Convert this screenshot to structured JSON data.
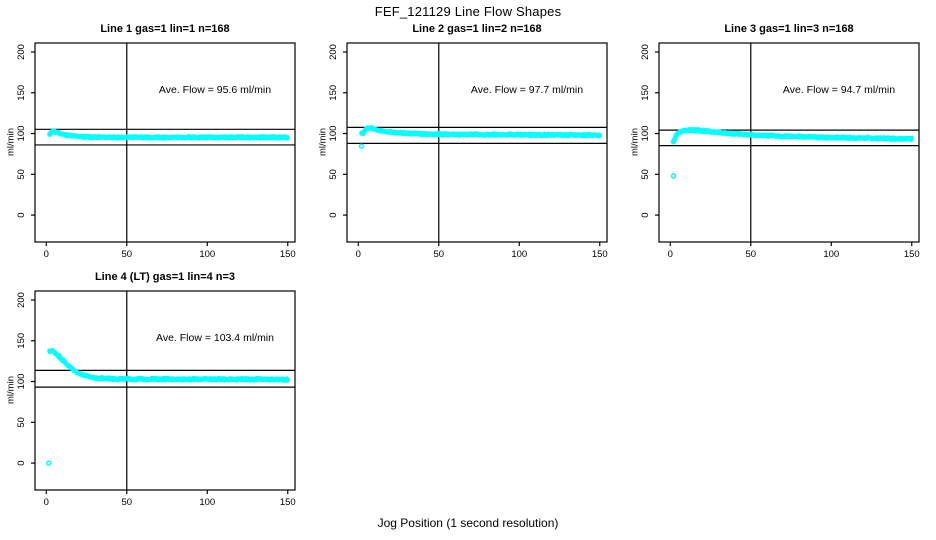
{
  "page_title": "FEF_121129  Line Flow Shapes",
  "x_axis_label": "Jog Position (1 second resolution)",
  "y_axis_label": "ml/min",
  "colors": {
    "points": "#00ffff",
    "lines": "#000000",
    "background": "#ffffff"
  },
  "chart_data": [
    {
      "type": "scatter",
      "title": "Line 1 gas=1 lin=1 n=168",
      "gas": 1,
      "lin": 1,
      "n": 168,
      "ave_flow": 95.6,
      "annotation": "Ave. Flow =  95.6  ml/min",
      "xlabel": "Jog Position (1 second resolution)",
      "ylabel": "ml/min",
      "xlim": [
        -7,
        154.5
      ],
      "ylim": [
        -33,
        211
      ],
      "x_ticks": [
        0,
        50,
        100,
        150
      ],
      "y_ticks": [
        0,
        50,
        100,
        150,
        200
      ],
      "vline_x": 50,
      "hlines": {
        "upper": 105.2,
        "lower": 86.0
      },
      "band_halfwidth": 1.6,
      "band": [
        [
          2,
          99.5
        ],
        [
          3,
          101.5
        ],
        [
          4,
          102.5
        ],
        [
          6,
          102.0
        ],
        [
          8,
          100.5
        ],
        [
          10,
          99.0
        ],
        [
          13,
          97.5
        ],
        [
          16,
          96.8
        ],
        [
          20,
          96.2
        ],
        [
          25,
          95.8
        ],
        [
          35,
          95.5
        ],
        [
          50,
          95.4
        ],
        [
          80,
          95.3
        ],
        [
          110,
          95.4
        ],
        [
          150,
          95.2
        ]
      ],
      "outliers": []
    },
    {
      "type": "scatter",
      "title": "Line 2 gas=1 lin=2 n=168",
      "gas": 1,
      "lin": 2,
      "n": 168,
      "ave_flow": 97.7,
      "annotation": "Ave. Flow =  97.7  ml/min",
      "xlabel": "Jog Position (1 second resolution)",
      "ylabel": "ml/min",
      "xlim": [
        -7,
        154.5
      ],
      "ylim": [
        -33,
        211
      ],
      "x_ticks": [
        0,
        50,
        100,
        150
      ],
      "y_ticks": [
        0,
        50,
        100,
        150,
        200
      ],
      "vline_x": 50,
      "hlines": {
        "upper": 107.5,
        "lower": 87.9
      },
      "band_halfwidth": 1.6,
      "band": [
        [
          2,
          99.8
        ],
        [
          3,
          101.0
        ],
        [
          4,
          103.5
        ],
        [
          5,
          105.5
        ],
        [
          6,
          106.8
        ],
        [
          8,
          106.5
        ],
        [
          10,
          105.3
        ],
        [
          13,
          103.8
        ],
        [
          16,
          102.8
        ],
        [
          20,
          101.8
        ],
        [
          25,
          100.8
        ],
        [
          30,
          100.2
        ],
        [
          40,
          99.4
        ],
        [
          55,
          98.9
        ],
        [
          80,
          98.6
        ],
        [
          110,
          98.3
        ],
        [
          150,
          97.9
        ]
      ],
      "outliers": [
        [
          2,
          84.5
        ]
      ]
    },
    {
      "type": "scatter",
      "title": "Line 3 gas=1 lin=3 n=168",
      "gas": 1,
      "lin": 3,
      "n": 168,
      "ave_flow": 94.7,
      "annotation": "Ave. Flow =  94.7  ml/min",
      "xlabel": "Jog Position (1 second resolution)",
      "ylabel": "ml/min",
      "xlim": [
        -7,
        154.5
      ],
      "ylim": [
        -33,
        211
      ],
      "x_ticks": [
        0,
        50,
        100,
        150
      ],
      "y_ticks": [
        0,
        50,
        100,
        150,
        200
      ],
      "vline_x": 50,
      "hlines": {
        "upper": 104.2,
        "lower": 85.2
      },
      "band_halfwidth": 1.7,
      "band": [
        [
          2,
          90.5
        ],
        [
          3,
          95.0
        ],
        [
          4,
          99.0
        ],
        [
          6,
          102.0
        ],
        [
          8,
          103.2
        ],
        [
          11,
          103.8
        ],
        [
          15,
          104.0
        ],
        [
          20,
          103.2
        ],
        [
          26,
          102.0
        ],
        [
          33,
          100.8
        ],
        [
          42,
          99.3
        ],
        [
          55,
          97.8
        ],
        [
          70,
          96.6
        ],
        [
          90,
          95.5
        ],
        [
          110,
          94.7
        ],
        [
          130,
          94.1
        ],
        [
          150,
          93.6
        ]
      ],
      "outliers": [
        [
          2,
          48.0
        ],
        [
          2,
          90.0
        ]
      ]
    },
    {
      "type": "scatter",
      "title": "Line 4 (LT) gas=1 lin=4 n=3",
      "gas": 1,
      "lin": 4,
      "n": 3,
      "ave_flow": 103.4,
      "annotation": "Ave. Flow =  103.4  ml/min",
      "xlabel": "Jog Position (1 second resolution)",
      "ylabel": "ml/min",
      "xlim": [
        -7,
        154.5
      ],
      "ylim": [
        -33,
        211
      ],
      "x_ticks": [
        0,
        50,
        100,
        150
      ],
      "y_ticks": [
        0,
        50,
        100,
        150,
        200
      ],
      "vline_x": 50,
      "hlines": {
        "upper": 113.7,
        "lower": 93.1
      },
      "band_halfwidth": 1.7,
      "band": [
        [
          2,
          137.0
        ],
        [
          3,
          138.0
        ],
        [
          4,
          137.5
        ],
        [
          5,
          136.0
        ],
        [
          7,
          132.5
        ],
        [
          9,
          128.5
        ],
        [
          11,
          124.5
        ],
        [
          13,
          120.5
        ],
        [
          15,
          117.0
        ],
        [
          18,
          112.5
        ],
        [
          21,
          109.5
        ],
        [
          24,
          107.2
        ],
        [
          27,
          105.6
        ],
        [
          30,
          104.6
        ],
        [
          35,
          103.8
        ],
        [
          42,
          103.3
        ],
        [
          55,
          103.0
        ],
        [
          80,
          102.8
        ],
        [
          110,
          102.9
        ],
        [
          150,
          102.5
        ]
      ],
      "outliers": [
        [
          1.5,
          0.0
        ]
      ]
    }
  ]
}
